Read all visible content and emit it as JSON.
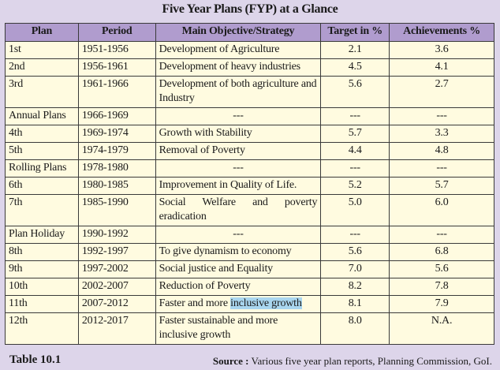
{
  "title": "Five Year Plans (FYP) at a Glance",
  "headers": [
    "Plan",
    "Period",
    "Main Objective/Strategy",
    "Target in %",
    "Achievements %"
  ],
  "rows": [
    {
      "plan": "1st",
      "period": "1951-1956",
      "objective": "Development of Agriculture",
      "target": "2.1",
      "achievement": "3.6"
    },
    {
      "plan": "2nd",
      "period": "1956-1961",
      "objective": "Development of heavy industries",
      "target": "4.5",
      "achievement": "4.1"
    },
    {
      "plan": "3rd",
      "period": "1961-1966",
      "objective": "Development of both agriculture and Industry",
      "target": "5.6",
      "achievement": "2.7"
    },
    {
      "plan": "Annual Plans",
      "period": "1966-1969",
      "objective": "---",
      "target": "---",
      "achievement": "---"
    },
    {
      "plan": "4th",
      "period": "1969-1974",
      "objective": "Growth with Stability",
      "target": "5.7",
      "achievement": "3.3"
    },
    {
      "plan": "5th",
      "period": "1974-1979",
      "objective": "Removal of Poverty",
      "target": "4.4",
      "achievement": "4.8"
    },
    {
      "plan": "Rolling Plans",
      "period": "1978-1980",
      "objective": "---",
      "target": "---",
      "achievement": "---"
    },
    {
      "plan": "6th",
      "period": "1980-1985",
      "objective": "Improvement in Quality of Life.",
      "target": "5.2",
      "achievement": "5.7"
    },
    {
      "plan": "7th",
      "period": "1985-1990",
      "objective": "Social Welfare and poverty eradication",
      "target": "5.0",
      "achievement": "6.0"
    },
    {
      "plan": "Plan Holiday",
      "period": "1990-1992",
      "objective": "---",
      "target": "---",
      "achievement": "---"
    },
    {
      "plan": "8th",
      "period": "1992-1997",
      "objective": "To give dynamism to economy",
      "target": "5.6",
      "achievement": "6.8"
    },
    {
      "plan": "9th",
      "period": "1997-2002",
      "objective": "Social justice and Equality",
      "target": "7.0",
      "achievement": "5.6"
    },
    {
      "plan": "10th",
      "period": "2002-2007",
      "objective": "Reduction of Poverty",
      "target": "8.2",
      "achievement": "7.8"
    },
    {
      "plan": "11th",
      "period": "2007-2012",
      "objective": "Faster and more ",
      "objective_highlight": "inclusive growth",
      "target": "8.1",
      "achievement": "7.9"
    },
    {
      "plan": "12th",
      "period": "2012-2017",
      "objective": "Faster sustainable and more inclusive growth",
      "target": "8.0",
      "achievement": "N.A."
    }
  ],
  "table_label": "Table 10.1",
  "source_label": "Source :",
  "source_text": " Various five year plan reports, Planning Commission, GoI.",
  "colors": {
    "background": "#ddd5ea",
    "header": "#b09cce",
    "cell": "#fffbe0",
    "highlight": "#a9d6ef"
  }
}
